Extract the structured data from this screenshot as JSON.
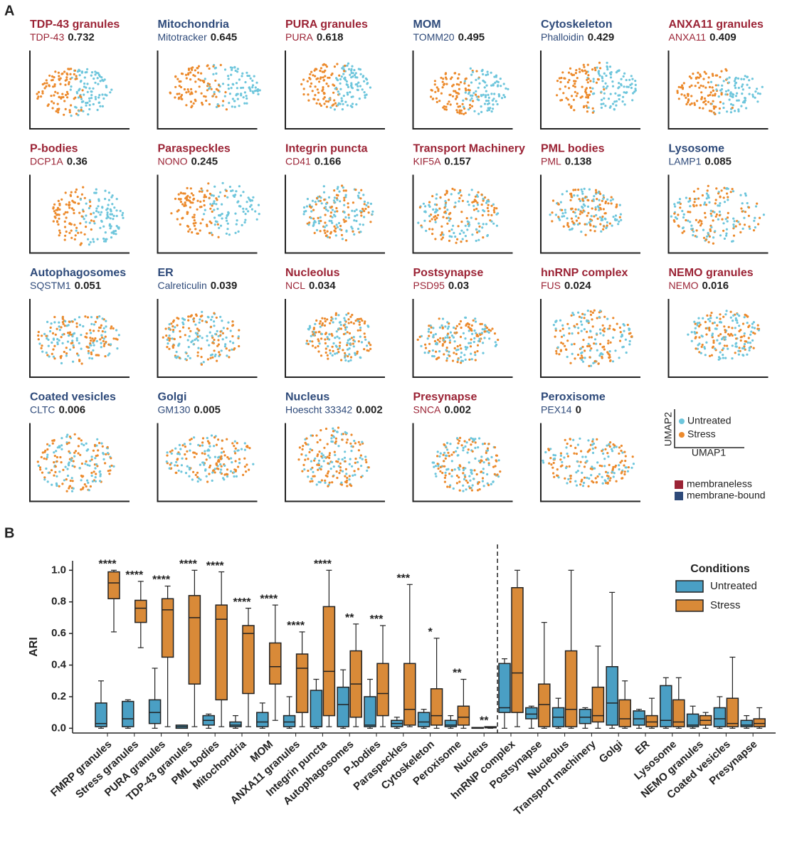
{
  "panel_a": {
    "label": "A",
    "panels": [
      {
        "title": "TDP-43 granules",
        "marker": "TDP-43",
        "score": 0.732,
        "color": "#9b2335"
      },
      {
        "title": "Mitochondria",
        "marker": "Mitotracker",
        "score": 0.645,
        "color": "#2e4a7a"
      },
      {
        "title": "PURA granules",
        "marker": "PURA",
        "score": 0.618,
        "color": "#9b2335"
      },
      {
        "title": "MOM",
        "marker": "TOMM20",
        "score": 0.495,
        "color": "#2e4a7a"
      },
      {
        "title": "Cytoskeleton",
        "marker": "Phalloidin",
        "score": 0.429,
        "color": "#2e4a7a"
      },
      {
        "title": "ANXA11 granules",
        "marker": "ANXA11",
        "score": 0.409,
        "color": "#9b2335"
      },
      {
        "title": "P-bodies",
        "marker": "DCP1A",
        "score": 0.36,
        "color": "#9b2335"
      },
      {
        "title": "Paraspeckles",
        "marker": "NONO",
        "score": 0.245,
        "color": "#9b2335"
      },
      {
        "title": "Integrin puncta",
        "marker": "CD41",
        "score": 0.166,
        "color": "#9b2335"
      },
      {
        "title": "Transport Machinery",
        "marker": "KIF5A",
        "score": 0.157,
        "color": "#9b2335"
      },
      {
        "title": "PML bodies",
        "marker": "PML",
        "score": 0.138,
        "color": "#9b2335"
      },
      {
        "title": "Lysosome",
        "marker": "LAMP1",
        "score": 0.085,
        "color": "#2e4a7a"
      },
      {
        "title": "Autophagosomes",
        "marker": "SQSTM1",
        "score": 0.051,
        "color": "#2e4a7a"
      },
      {
        "title": "ER",
        "marker": "Calreticulin",
        "score": 0.039,
        "color": "#2e4a7a"
      },
      {
        "title": "Nucleolus",
        "marker": "NCL",
        "score": 0.034,
        "color": "#9b2335"
      },
      {
        "title": "Postsynapse",
        "marker": "PSD95",
        "score": 0.03,
        "color": "#9b2335"
      },
      {
        "title": "hnRNP complex",
        "marker": "FUS",
        "score": 0.024,
        "color": "#9b2335"
      },
      {
        "title": "NEMO granules",
        "marker": "NEMO",
        "score": 0.016,
        "color": "#9b2335"
      },
      {
        "title": "Coated vesicles",
        "marker": "CLTC",
        "score": 0.006,
        "color": "#2e4a7a"
      },
      {
        "title": "Golgi",
        "marker": "GM130",
        "score": 0.005,
        "color": "#2e4a7a"
      },
      {
        "title": "Nucleus",
        "marker": "Hoescht 33342",
        "score": 0.002,
        "color": "#2e4a7a"
      },
      {
        "title": "Presynapse",
        "marker": "SNCA",
        "score": 0.002,
        "color": "#9b2335"
      },
      {
        "title": "Peroxisome",
        "marker": "PEX14",
        "score": 0,
        "color": "#2e4a7a"
      }
    ],
    "legend": {
      "y_axis": "UMAP2",
      "x_axis": "UMAP1",
      "conditions": [
        {
          "name": "Untreated",
          "color": "#6ec6dc"
        },
        {
          "name": "Stress",
          "color": "#ec8a2c"
        }
      ],
      "classes": [
        {
          "name": "membraneless",
          "color": "#9b2335"
        },
        {
          "name": "membrane-bound",
          "color": "#2e4a7a"
        }
      ]
    }
  },
  "chart_data": {
    "type": "box",
    "label": "B",
    "y_label": "ARI",
    "legend_title": "Conditions",
    "categories": [
      "FMRP granules",
      "Stress granules",
      "PURA granules",
      "TDP-43 granules",
      "PML bodies",
      "Mitochondria",
      "MOM",
      "ANXA11 granules",
      "Integrin puncta",
      "Autophagosomes",
      "P-bodies",
      "Paraspeckles",
      "Cytoskeleton",
      "Peroxisome",
      "Nucleus",
      "hnRNP complex",
      "Postsynapse",
      "Nucleolus",
      "Transport machinery",
      "Golgi",
      "ER",
      "Lysosome",
      "NEMO granules",
      "Coated vesicles",
      "Presynapse"
    ],
    "significance": [
      "****",
      "****",
      "****",
      "****",
      "****",
      "****",
      "****",
      "****",
      "****",
      "**",
      "***",
      "***",
      "*",
      "**",
      "**",
      null,
      null,
      null,
      null,
      null,
      null,
      null,
      null,
      null,
      null
    ],
    "ylim": [
      -0.03,
      1.06
    ],
    "yticks": [
      {
        "value": 0,
        "label": "0.0"
      },
      0.2,
      0.4,
      0.6,
      0.8,
      {
        "value": 1,
        "label": "1.0"
      }
    ],
    "series": [
      {
        "name": "Untreated",
        "color": "#4a9fc4",
        "whislo": [
          0,
          0,
          0,
          0,
          0,
          0,
          0,
          0,
          0,
          0,
          0,
          0,
          0,
          0,
          0,
          0,
          0,
          0,
          0,
          0,
          0,
          0,
          0,
          0,
          0
        ],
        "q1": [
          0.01,
          0.01,
          0.03,
          0,
          0.02,
          0.01,
          0.01,
          0.01,
          0.01,
          0.01,
          0.01,
          0.01,
          0.01,
          0.01,
          0,
          0.1,
          0.06,
          0.01,
          0.03,
          0.02,
          0.02,
          0.01,
          0.01,
          0.01,
          0.01
        ],
        "median": [
          0.03,
          0.06,
          0.1,
          0.01,
          0.05,
          0.02,
          0.04,
          0.04,
          0.01,
          0.15,
          0.02,
          0.03,
          0.04,
          0.02,
          0.002,
          0.13,
          0.09,
          0.07,
          0.07,
          0.16,
          0.06,
          0.05,
          0.02,
          0.06,
          0.02
        ],
        "q3": [
          0.16,
          0.17,
          0.18,
          0.02,
          0.08,
          0.04,
          0.1,
          0.08,
          0.24,
          0.26,
          0.2,
          0.05,
          0.1,
          0.05,
          0.005,
          0.41,
          0.13,
          0.13,
          0.12,
          0.39,
          0.11,
          0.27,
          0.09,
          0.13,
          0.05
        ],
        "whishi": [
          0.3,
          0.18,
          0.38,
          0.02,
          0.09,
          0.08,
          0.16,
          0.2,
          0.31,
          0.37,
          0.31,
          0.07,
          0.12,
          0.08,
          0.005,
          0.44,
          0.14,
          0.19,
          0.13,
          0.86,
          0.12,
          0.32,
          0.14,
          0.2,
          0.08
        ]
      },
      {
        "name": "Stress",
        "color": "#d98a38",
        "whislo": [
          0.61,
          0.51,
          0.01,
          0.01,
          0.01,
          0.01,
          0.05,
          0.01,
          0.01,
          0.01,
          0.01,
          0.01,
          0,
          0,
          0,
          0.01,
          0,
          0,
          0,
          0,
          0,
          0,
          0,
          0,
          0
        ],
        "q1": [
          0.82,
          0.67,
          0.45,
          0.28,
          0.18,
          0.22,
          0.28,
          0.1,
          0.08,
          0.07,
          0.08,
          0.02,
          0.02,
          0.02,
          0.003,
          0.1,
          0.01,
          0.01,
          0.04,
          0.01,
          0.01,
          0.01,
          0.02,
          0.01,
          0.01
        ],
        "median": [
          0.92,
          0.76,
          0.75,
          0.7,
          0.69,
          0.6,
          0.39,
          0.38,
          0.36,
          0.28,
          0.22,
          0.12,
          0.08,
          0.07,
          0.005,
          0.35,
          0.15,
          0.12,
          0.08,
          0.06,
          0.04,
          0.04,
          0.05,
          0.03,
          0.03
        ],
        "q3": [
          0.99,
          0.81,
          0.82,
          0.84,
          0.78,
          0.65,
          0.54,
          0.47,
          0.77,
          0.49,
          0.41,
          0.41,
          0.25,
          0.14,
          0.01,
          0.89,
          0.28,
          0.49,
          0.26,
          0.18,
          0.08,
          0.18,
          0.08,
          0.19,
          0.06
        ],
        "whishi": [
          1,
          0.93,
          0.9,
          1,
          0.99,
          0.76,
          0.78,
          0.61,
          1,
          0.66,
          0.65,
          0.91,
          0.57,
          0.31,
          0.01,
          1,
          0.67,
          1,
          0.52,
          0.3,
          0.19,
          0.32,
          0.1,
          0.45,
          0.13
        ]
      }
    ]
  }
}
